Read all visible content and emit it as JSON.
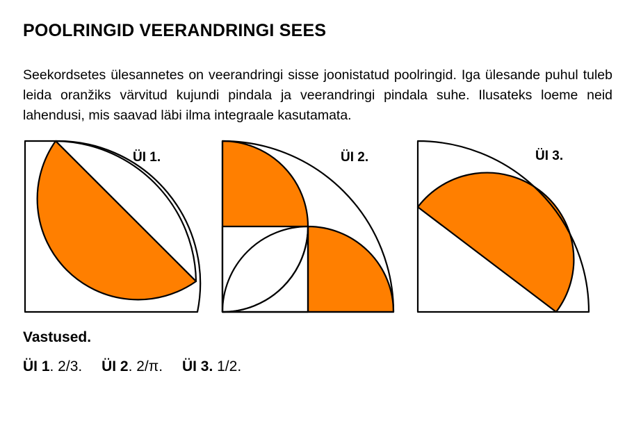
{
  "title": "POOLRINGID VEERANDRINGI SEES",
  "intro": "Seekordsetes ülesannetes on veerandringi sisse joonistatud poolringid. Iga ülesande puhul tuleb leida oranžiks värvitud kujundi pindala ja veerandringi pindala suhe. Ilusateks loeme neid lahendusi, mis saavad läbi ilma integraale kasutamata.",
  "figures": [
    {
      "label": "ÜI 1."
    },
    {
      "label": "ÜI 2."
    },
    {
      "label": "ÜI 3."
    }
  ],
  "answers_heading": "Vastused.",
  "answers": [
    {
      "exercise": "ÜI 1",
      "value": ". 2/3."
    },
    {
      "exercise": "ÜI 2",
      "value": ". 2/π."
    },
    {
      "exercise": "ÜI 3.",
      "value": " 1/2."
    }
  ],
  "colors": {
    "fill": "#ff7f00",
    "stroke": "#000000"
  }
}
